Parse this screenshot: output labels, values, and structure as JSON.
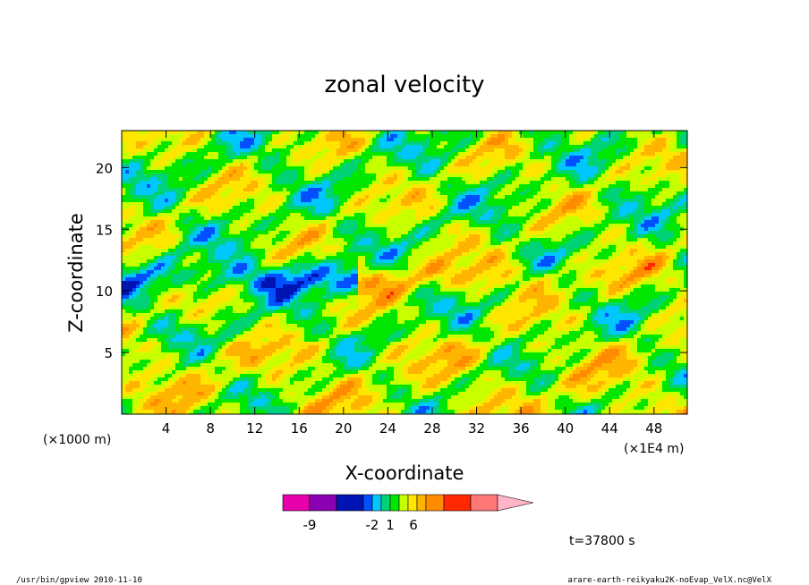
{
  "chart_data": {
    "type": "heatmap",
    "title": "zonal velocity",
    "xlabel": "X-coordinate",
    "ylabel": "Z-coordinate",
    "x_unit_left": "(×1000 m)",
    "x_unit_right": "(×1E4 m)",
    "xlim": [
      0,
      51
    ],
    "ylim": [
      0,
      23
    ],
    "x_ticks": [
      4,
      8,
      12,
      16,
      20,
      24,
      28,
      32,
      36,
      40,
      44,
      48
    ],
    "y_ticks": [
      5,
      10,
      15,
      20
    ],
    "time_label": "t=37800 s",
    "colorbar": {
      "colors": [
        "#e600aa",
        "#8c00b4",
        "#0014b4",
        "#0050ff",
        "#00c8ff",
        "#00d278",
        "#00e600",
        "#c8ff00",
        "#ffe600",
        "#ffb400",
        "#ff8c00",
        "#ff2800",
        "#ff7878",
        "#ffb4c8"
      ],
      "tick_labels": [
        {
          "label": "-9",
          "index": 1
        },
        {
          "label": "-2",
          "index": 4
        },
        {
          "label": "1",
          "index": 6
        },
        {
          "label": "6",
          "index": 8.6
        }
      ]
    }
  },
  "footer": {
    "left": "/usr/bin/gpview  2010-11-10",
    "right": "arare-earth-reikyaku2K-noEvap_VelX.nc@VelX"
  }
}
